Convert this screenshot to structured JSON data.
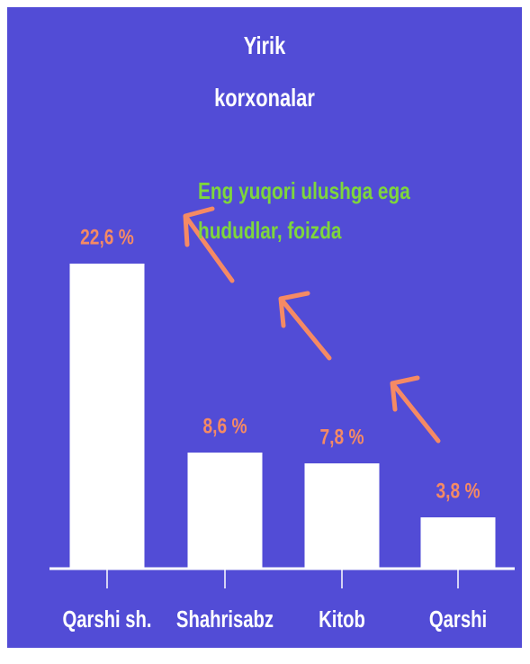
{
  "chart_data": {
    "type": "bar",
    "title": "Yirik korxonalar",
    "annotation": "Eng yuqori ulushga ega hududlar, foizda",
    "categories": [
      "Qarshi sh.",
      "Shahrisabz",
      "Kitob",
      "Qarshi"
    ],
    "values": [
      22.6,
      8.6,
      7.8,
      3.8
    ],
    "value_labels": [
      "22,6 %",
      "8,6 %",
      "7,8 %",
      "3,8 %"
    ],
    "color": "#ffffff",
    "background": "#524cd6",
    "label_color": "#f58a64",
    "annotation_color": "#7ed63c"
  }
}
